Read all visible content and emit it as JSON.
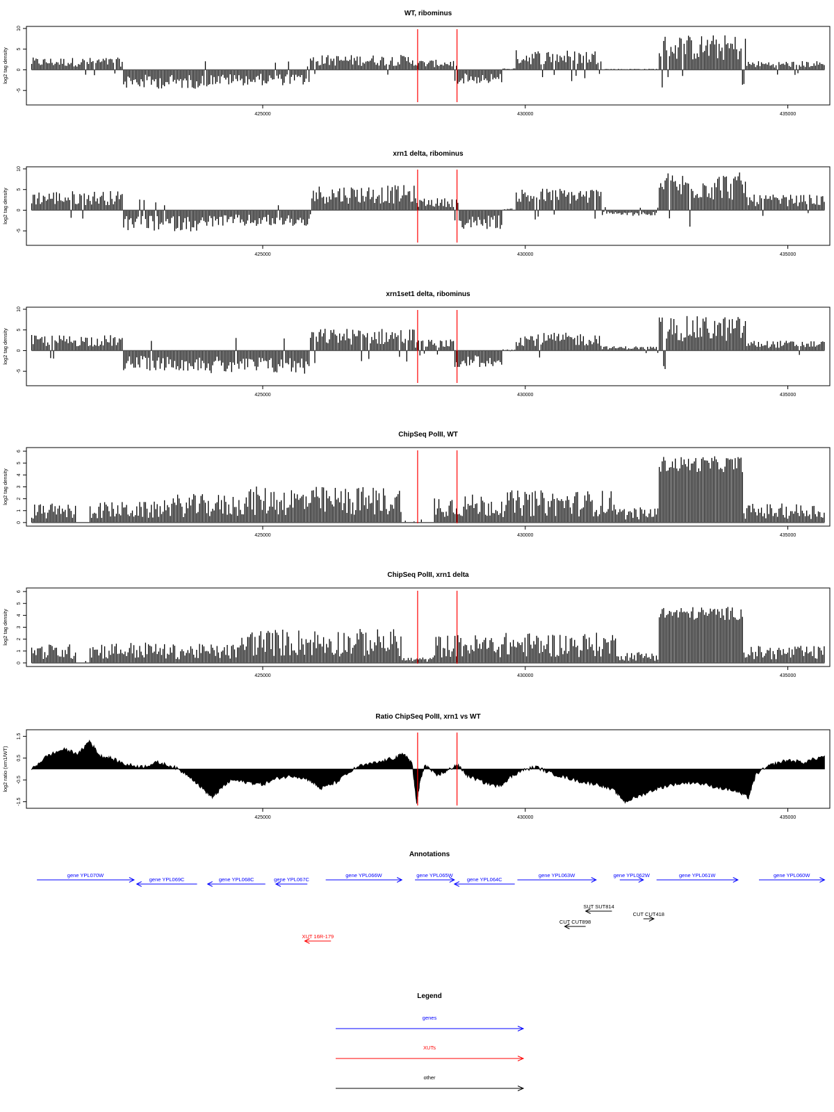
{
  "chart_data": [
    {
      "type": "bar",
      "title": "WT, ribominus",
      "ylabel": "log2 tag density",
      "ylim": [
        -8.5,
        10.5
      ],
      "yticks": [
        -5,
        0,
        5,
        10
      ],
      "xlim": [
        420500,
        435800
      ],
      "xticks": [
        425000,
        430000,
        435000
      ],
      "vlines": [
        427950,
        428700
      ],
      "bar_color": "#000000",
      "vline_color": "#ff0000",
      "x_start": 420600,
      "x_end": 435700,
      "segments": [
        {
          "start": 420600,
          "end": 422350,
          "level": 2.2
        },
        {
          "start": 422350,
          "end": 423950,
          "level": -3.4
        },
        {
          "start": 423950,
          "end": 425900,
          "level": -2.8
        },
        {
          "start": 425900,
          "end": 427900,
          "level": 2.7
        },
        {
          "start": 427900,
          "end": 428650,
          "level": 1.8
        },
        {
          "start": 428650,
          "end": 429550,
          "level": -2.5
        },
        {
          "start": 429550,
          "end": 429800,
          "level": 0.3
        },
        {
          "start": 429800,
          "end": 431450,
          "level": 3.6
        },
        {
          "start": 431450,
          "end": 432550,
          "level": 0.2
        },
        {
          "start": 432550,
          "end": 434200,
          "level": 6.3
        },
        {
          "start": 434200,
          "end": 435700,
          "level": 1.6
        }
      ]
    },
    {
      "type": "bar",
      "title": "xrn1 delta, ribominus",
      "ylabel": "log2 tag density",
      "ylim": [
        -8.5,
        10.5
      ],
      "yticks": [
        -5,
        0,
        5,
        10
      ],
      "xlim": [
        420500,
        435800
      ],
      "xticks": [
        425000,
        430000,
        435000
      ],
      "vlines": [
        427950,
        428700
      ],
      "bar_color": "#000000",
      "vline_color": "#ff0000",
      "x_start": 420600,
      "x_end": 435700,
      "segments": [
        {
          "start": 420600,
          "end": 422350,
          "level": 3.5
        },
        {
          "start": 422350,
          "end": 423950,
          "level": -3.8
        },
        {
          "start": 423950,
          "end": 425900,
          "level": -3.0
        },
        {
          "start": 425900,
          "end": 427900,
          "level": 4.5
        },
        {
          "start": 427900,
          "end": 428650,
          "level": 2.2
        },
        {
          "start": 428650,
          "end": 429550,
          "level": -3.5
        },
        {
          "start": 429550,
          "end": 429800,
          "level": 0.3
        },
        {
          "start": 429800,
          "end": 431450,
          "level": 4.0
        },
        {
          "start": 431450,
          "end": 432550,
          "level": -1.0
        },
        {
          "start": 432550,
          "end": 434200,
          "level": 6.8
        },
        {
          "start": 434200,
          "end": 435700,
          "level": 2.8
        }
      ]
    },
    {
      "type": "bar",
      "title": "xrn1set1 delta, ribominus",
      "ylabel": "log2 tag density",
      "ylim": [
        -8.5,
        10.5
      ],
      "yticks": [
        -5,
        0,
        5,
        10
      ],
      "xlim": [
        420500,
        435800
      ],
      "xticks": [
        425000,
        430000,
        435000
      ],
      "vlines": [
        427950,
        428700
      ],
      "bar_color": "#000000",
      "vline_color": "#ff0000",
      "x_start": 420600,
      "x_end": 435700,
      "segments": [
        {
          "start": 420600,
          "end": 422350,
          "level": 2.8
        },
        {
          "start": 422350,
          "end": 423950,
          "level": -3.6
        },
        {
          "start": 423950,
          "end": 425900,
          "level": -4.2
        },
        {
          "start": 425900,
          "end": 427900,
          "level": 4.0
        },
        {
          "start": 427900,
          "end": 428650,
          "level": 2.0
        },
        {
          "start": 428650,
          "end": 429550,
          "level": -3.0
        },
        {
          "start": 429550,
          "end": 429800,
          "level": 0.3
        },
        {
          "start": 429800,
          "end": 431450,
          "level": 3.2
        },
        {
          "start": 431450,
          "end": 432550,
          "level": 0.8
        },
        {
          "start": 432550,
          "end": 434200,
          "level": 6.2
        },
        {
          "start": 434200,
          "end": 435700,
          "level": 1.8
        }
      ]
    },
    {
      "type": "bar",
      "title": "ChipSeq PolII, WT",
      "ylabel": "log2 tag density",
      "ylim": [
        -0.3,
        6.3
      ],
      "yticks": [
        0,
        1,
        2,
        3,
        4,
        5,
        6
      ],
      "xlim": [
        420500,
        435800
      ],
      "xticks": [
        425000,
        430000,
        435000
      ],
      "vlines": [
        427950,
        428700
      ],
      "bar_color": "#000000",
      "vline_color": "#ff0000",
      "x_start": 420600,
      "x_end": 435700,
      "segments": [
        {
          "start": 420600,
          "end": 421450,
          "level": 1.0
        },
        {
          "start": 421450,
          "end": 421700,
          "level": 0.0
        },
        {
          "start": 421700,
          "end": 423100,
          "level": 1.1
        },
        {
          "start": 423100,
          "end": 424600,
          "level": 1.5
        },
        {
          "start": 424600,
          "end": 427650,
          "level": 1.9
        },
        {
          "start": 427650,
          "end": 428250,
          "level": 0.2
        },
        {
          "start": 428250,
          "end": 429600,
          "level": 1.5
        },
        {
          "start": 429600,
          "end": 431800,
          "level": 1.7
        },
        {
          "start": 431800,
          "end": 432550,
          "level": 0.8
        },
        {
          "start": 432550,
          "end": 434150,
          "level": 5.3
        },
        {
          "start": 434150,
          "end": 435700,
          "level": 1.0
        }
      ]
    },
    {
      "type": "bar",
      "title": "ChipSeq PolII, xrn1 delta",
      "ylabel": "log2 tag density",
      "ylim": [
        -0.3,
        6.3
      ],
      "yticks": [
        0,
        1,
        2,
        3,
        4,
        5,
        6
      ],
      "xlim": [
        420500,
        435800
      ],
      "xticks": [
        425000,
        430000,
        435000
      ],
      "vlines": [
        427950,
        428700
      ],
      "bar_color": "#000000",
      "vline_color": "#ff0000",
      "x_start": 420600,
      "x_end": 435700,
      "segments": [
        {
          "start": 420600,
          "end": 421450,
          "level": 1.0
        },
        {
          "start": 421450,
          "end": 421700,
          "level": 0.2
        },
        {
          "start": 421700,
          "end": 423100,
          "level": 1.1
        },
        {
          "start": 423100,
          "end": 424600,
          "level": 1.0
        },
        {
          "start": 424600,
          "end": 427650,
          "level": 1.8
        },
        {
          "start": 427650,
          "end": 428250,
          "level": 0.3
        },
        {
          "start": 428250,
          "end": 429600,
          "level": 1.5
        },
        {
          "start": 429600,
          "end": 431800,
          "level": 1.6
        },
        {
          "start": 431800,
          "end": 432550,
          "level": 0.6
        },
        {
          "start": 432550,
          "end": 434150,
          "level": 4.5
        },
        {
          "start": 434150,
          "end": 435700,
          "level": 0.9
        }
      ]
    },
    {
      "type": "area",
      "title": "Ratio ChipSeq PolII, xrn1 vs WT",
      "ylabel": "log2 ratio (xrn1/WT)",
      "ylim": [
        -1.8,
        1.8
      ],
      "yticks": [
        -1.5,
        -0.5,
        0.5,
        1.5
      ],
      "xlim": [
        420500,
        435800
      ],
      "xticks": [
        425000,
        430000,
        435000
      ],
      "vlines": [
        427950,
        428700
      ],
      "fill_color": "#000000",
      "vline_color": "#ff0000",
      "x": [
        420600,
        420900,
        421200,
        421500,
        421700,
        421900,
        422100,
        422400,
        422700,
        423000,
        423300,
        423600,
        423900,
        424050,
        424200,
        424400,
        424700,
        425000,
        425300,
        425600,
        425900,
        426100,
        426400,
        426800,
        427200,
        427500,
        427700,
        427850,
        427930,
        428000,
        428100,
        428300,
        428500,
        428700,
        428900,
        429200,
        429500,
        429700,
        429900,
        430200,
        430500,
        430800,
        431100,
        431400,
        431700,
        431900,
        432200,
        432500,
        432800,
        433200,
        433600,
        434000,
        434250,
        434400,
        434700,
        435000,
        435300,
        435700
      ],
      "y": [
        0.0,
        0.6,
        0.9,
        0.7,
        1.3,
        0.6,
        0.5,
        0.2,
        0.1,
        0.3,
        0.1,
        -0.3,
        -1.0,
        -1.3,
        -0.9,
        -0.5,
        -0.6,
        -0.7,
        -0.4,
        -0.3,
        -0.5,
        -0.9,
        -0.6,
        0.1,
        0.3,
        0.5,
        0.7,
        0.2,
        -1.6,
        -0.5,
        0.2,
        -0.3,
        -0.1,
        0.2,
        -0.3,
        -0.6,
        -0.8,
        -0.4,
        -0.1,
        0.1,
        -0.2,
        -0.4,
        -0.6,
        -0.7,
        -1.0,
        -1.5,
        -1.2,
        -0.9,
        -0.7,
        -0.6,
        -0.8,
        -1.0,
        -1.3,
        -0.2,
        0.2,
        0.4,
        0.3,
        0.6
      ]
    }
  ],
  "annotations": {
    "title": "Annotations",
    "items": [
      {
        "label": "gene YPL070W",
        "start": 420700,
        "end": 422550,
        "strand": "+",
        "color": "#0000ff",
        "row": 0
      },
      {
        "label": "gene YPL069C",
        "start": 422600,
        "end": 423750,
        "strand": "-",
        "color": "#0000ff",
        "row": 1
      },
      {
        "label": "gene YPL068C",
        "start": 423950,
        "end": 425050,
        "strand": "-",
        "color": "#0000ff",
        "row": 1
      },
      {
        "label": "gene YPL067C",
        "start": 425250,
        "end": 425850,
        "strand": "-",
        "color": "#0000ff",
        "row": 1
      },
      {
        "label": "gene YPL066W",
        "start": 426200,
        "end": 427650,
        "strand": "+",
        "color": "#0000ff",
        "row": 0
      },
      {
        "label": "gene YPL065W",
        "start": 427900,
        "end": 428650,
        "strand": "+",
        "color": "#0000ff",
        "row": 0
      },
      {
        "label": "gene YPL064C",
        "start": 428650,
        "end": 429800,
        "strand": "-",
        "color": "#0000ff",
        "row": 1
      },
      {
        "label": "gene YPL063W",
        "start": 429850,
        "end": 431350,
        "strand": "+",
        "color": "#0000ff",
        "row": 0
      },
      {
        "label": "gene YPL062W",
        "start": 431800,
        "end": 432250,
        "strand": "+",
        "color": "#0000ff",
        "row": 0
      },
      {
        "label": "gene YPL061W",
        "start": 432500,
        "end": 434050,
        "strand": "+",
        "color": "#0000ff",
        "row": 0
      },
      {
        "label": "gene YPL060W",
        "start": 434450,
        "end": 435700,
        "strand": "+",
        "color": "#0000ff",
        "row": 0
      },
      {
        "label": "SUT SUT814",
        "start": 431150,
        "end": 431650,
        "strand": "-",
        "color": "#000000",
        "row": 2
      },
      {
        "label": "CUT CUT418",
        "start": 432250,
        "end": 432450,
        "strand": "+",
        "color": "#000000",
        "row": 3
      },
      {
        "label": "CUT CUT898",
        "start": 430750,
        "end": 431150,
        "strand": "-",
        "color": "#000000",
        "row": 4
      },
      {
        "label": "XUT 16R-179",
        "start": 425800,
        "end": 426300,
        "strand": "-",
        "color": "#ff0000",
        "row": 5
      }
    ]
  },
  "legend": {
    "title": "Legend",
    "items": [
      {
        "label": "genes",
        "color": "#0000ff"
      },
      {
        "label": "XUTs",
        "color": "#ff0000"
      },
      {
        "label": "other",
        "color": "#000000"
      }
    ]
  }
}
